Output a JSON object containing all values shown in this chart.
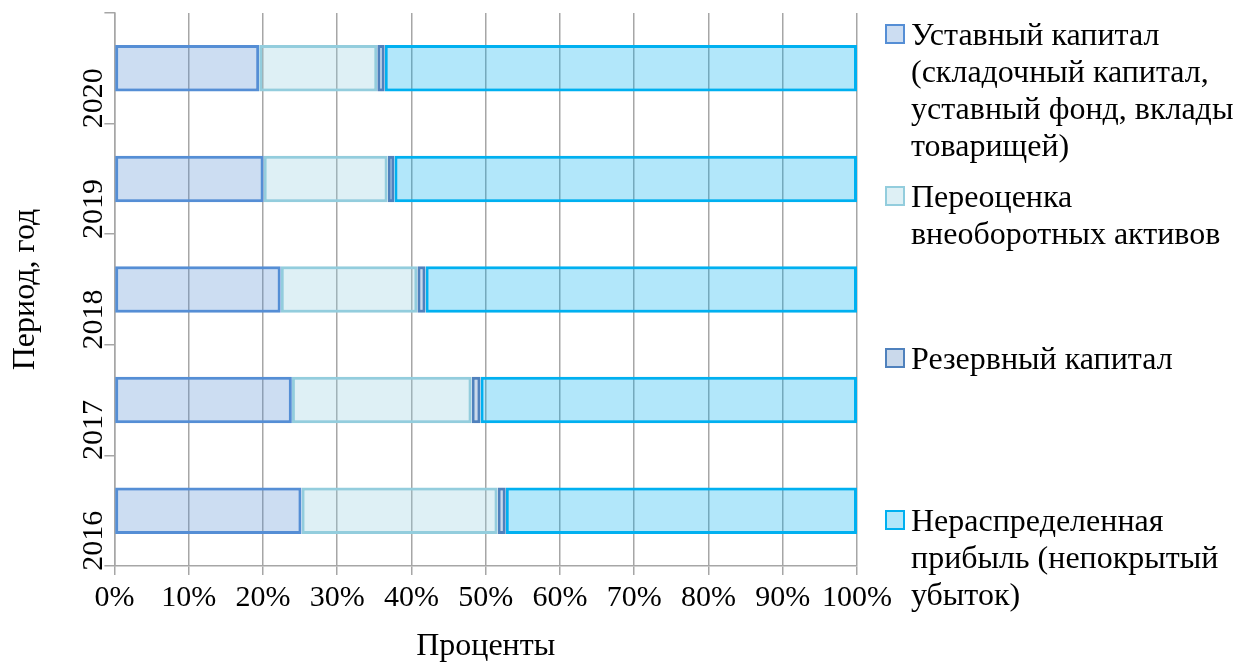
{
  "chart_data": {
    "type": "bar",
    "orientation": "horizontal",
    "stacked": true,
    "categories": [
      "2020",
      "2019",
      "2018",
      "2017",
      "2016"
    ],
    "series": [
      {
        "name": "Уставный капитал (складочный капитал, уставный фонд, вклады товарищей)",
        "color": "#558ed5",
        "values": [
          19.5,
          20.1,
          22.4,
          23.9,
          25.2
        ]
      },
      {
        "name": "Переоценка внеоборотных активов",
        "color": "#93cddd",
        "values": [
          15.9,
          16.7,
          18.4,
          24.2,
          26.4
        ]
      },
      {
        "name": "Резервный капитал",
        "color": "#4f81bd",
        "values": [
          1.0,
          0.9,
          1.1,
          1.2,
          1.1
        ]
      },
      {
        "name": "Нераспределенная прибыль (непокрытый убыток)",
        "color": "#00b0f0",
        "values": [
          63.6,
          62.3,
          58.1,
          50.7,
          47.3
        ]
      }
    ],
    "xlim": [
      0,
      100
    ],
    "xticks": [
      {
        "value": 0,
        "label": "0%"
      },
      {
        "value": 10,
        "label": "10%"
      },
      {
        "value": 20,
        "label": "20%"
      },
      {
        "value": 30,
        "label": "30%"
      },
      {
        "value": 40,
        "label": "40%"
      },
      {
        "value": 50,
        "label": "50%"
      },
      {
        "value": 60,
        "label": "60%"
      },
      {
        "value": 70,
        "label": "70%"
      },
      {
        "value": 80,
        "label": "80%"
      },
      {
        "value": 90,
        "label": "90%"
      },
      {
        "value": 100,
        "label": "100%"
      }
    ],
    "xlabel": "Проценты",
    "ylabel": "Период, год",
    "grid": "x",
    "legend": "right"
  }
}
